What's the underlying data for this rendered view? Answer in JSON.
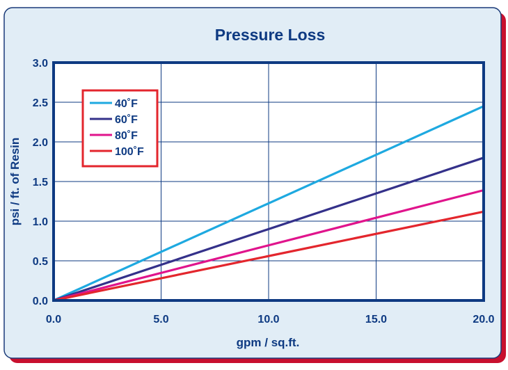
{
  "chart_data": {
    "type": "line",
    "title": "Pressure Loss",
    "xlabel": "gpm / sq.ft.",
    "ylabel": "psi / ft. of Resin",
    "xlim": [
      0,
      20
    ],
    "ylim": [
      0,
      3.0
    ],
    "grid": true,
    "legend_position": "top-left",
    "x_ticks": [
      "0.0",
      "5.0",
      "10.0",
      "15.0",
      "20.0"
    ],
    "y_ticks": [
      "0.0",
      "0.5",
      "1.0",
      "1.5",
      "2.0",
      "2.5",
      "3.0"
    ],
    "series": [
      {
        "name": "40˚F",
        "color": "#1ea9e0",
        "x": [
          0,
          20
        ],
        "y": [
          0,
          2.45
        ]
      },
      {
        "name": "60˚F",
        "color": "#34318a",
        "x": [
          0,
          20
        ],
        "y": [
          0,
          1.8
        ]
      },
      {
        "name": "80˚F",
        "color": "#e0148c",
        "x": [
          0,
          20
        ],
        "y": [
          0,
          1.39
        ]
      },
      {
        "name": "100˚F",
        "color": "#e3262d",
        "x": [
          0,
          20
        ],
        "y": [
          0,
          1.12
        ]
      }
    ]
  },
  "colors": {
    "frame_fill": "#e1edf6",
    "frame_border": "#1a3a78",
    "frame_shadow": "#c8102e",
    "plot_border": "#0e3a82",
    "grid": "#0e3a82",
    "text": "#0e3a82",
    "legend_border": "#e3262d"
  }
}
